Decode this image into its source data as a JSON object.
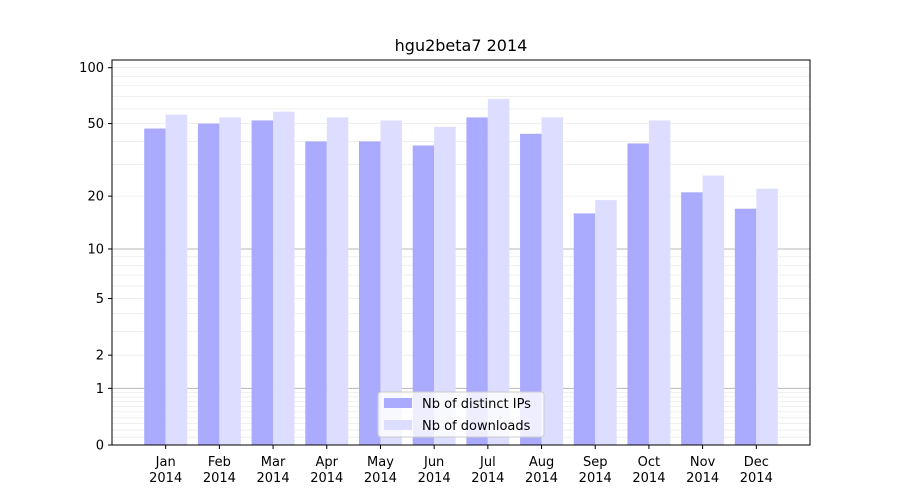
{
  "chart_data": {
    "type": "bar",
    "title": "hgu2beta7 2014",
    "xlabel": "",
    "ylabel": "",
    "y_scale": "log(1+y)",
    "y_ticks": [
      0,
      1,
      2,
      5,
      10,
      20,
      50,
      100
    ],
    "ylim": [
      0,
      110
    ],
    "grid": true,
    "legend_position": "bottom-center",
    "categories": [
      [
        "Jan",
        "2014"
      ],
      [
        "Feb",
        "2014"
      ],
      [
        "Mar",
        "2014"
      ],
      [
        "Apr",
        "2014"
      ],
      [
        "May",
        "2014"
      ],
      [
        "Jun",
        "2014"
      ],
      [
        "Jul",
        "2014"
      ],
      [
        "Aug",
        "2014"
      ],
      [
        "Sep",
        "2014"
      ],
      [
        "Oct",
        "2014"
      ],
      [
        "Nov",
        "2014"
      ],
      [
        "Dec",
        "2014"
      ]
    ],
    "series": [
      {
        "name": "Nb of distinct IPs",
        "color": "#aaaaff",
        "values": [
          47,
          50,
          52,
          40,
          40,
          38,
          54,
          44,
          16,
          39,
          21,
          17
        ]
      },
      {
        "name": "Nb of downloads",
        "color": "#ddddff",
        "values": [
          56,
          54,
          58,
          54,
          52,
          48,
          68,
          54,
          19,
          52,
          26,
          22
        ]
      }
    ]
  }
}
